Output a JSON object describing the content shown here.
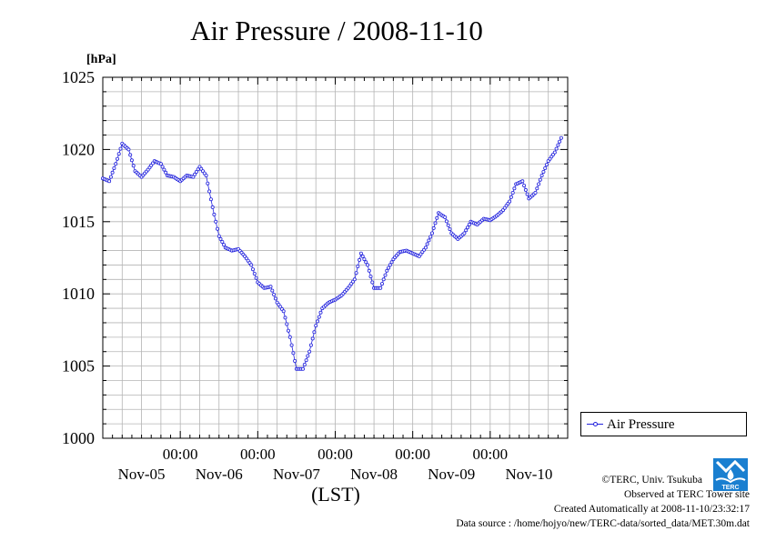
{
  "title": "Air Pressure / 2008-11-10",
  "colors": {
    "series": "#2222dd",
    "grid": "#b4b4b4",
    "logo": "#1a7fd0"
  },
  "chart_data": {
    "type": "line",
    "title": "Air Pressure / 2008-11-10",
    "ylabel": "[hPa]",
    "xlabel": "(LST)",
    "ylim": [
      1000,
      1025
    ],
    "y_ticks": [
      "1000",
      "1005",
      "1010",
      "1015",
      "1020",
      "1025"
    ],
    "x_range_hours": [
      0,
      144
    ],
    "x_tick_time_labels": [
      "00:00",
      "00:00",
      "00:00",
      "00:00",
      "00:00"
    ],
    "x_day_labels": [
      "Nov-05",
      "Nov-06",
      "Nov-07",
      "Nov-08",
      "Nov-09",
      "Nov-10"
    ],
    "grid": true,
    "legend_position": "right",
    "series": [
      {
        "name": "Air Pressure",
        "points": [
          [
            0,
            1018.0
          ],
          [
            2,
            1017.8
          ],
          [
            4,
            1019.0
          ],
          [
            6,
            1020.4
          ],
          [
            8,
            1020.0
          ],
          [
            10,
            1018.5
          ],
          [
            12,
            1018.1
          ],
          [
            14,
            1018.6
          ],
          [
            16,
            1019.2
          ],
          [
            18,
            1019.0
          ],
          [
            20,
            1018.2
          ],
          [
            22,
            1018.1
          ],
          [
            24,
            1017.8
          ],
          [
            26,
            1018.2
          ],
          [
            28,
            1018.1
          ],
          [
            30,
            1018.8
          ],
          [
            32,
            1018.2
          ],
          [
            34,
            1016.0
          ],
          [
            36,
            1014.0
          ],
          [
            38,
            1013.2
          ],
          [
            40,
            1013.0
          ],
          [
            42,
            1013.1
          ],
          [
            44,
            1012.6
          ],
          [
            46,
            1012.0
          ],
          [
            48,
            1010.8
          ],
          [
            50,
            1010.4
          ],
          [
            52,
            1010.5
          ],
          [
            54,
            1009.4
          ],
          [
            56,
            1008.8
          ],
          [
            58,
            1007.0
          ],
          [
            60,
            1004.8
          ],
          [
            62,
            1004.8
          ],
          [
            64,
            1006.0
          ],
          [
            66,
            1007.8
          ],
          [
            68,
            1009.0
          ],
          [
            70,
            1009.4
          ],
          [
            72,
            1009.6
          ],
          [
            74,
            1009.9
          ],
          [
            76,
            1010.4
          ],
          [
            78,
            1011.0
          ],
          [
            80,
            1012.8
          ],
          [
            82,
            1012.0
          ],
          [
            84,
            1010.4
          ],
          [
            86,
            1010.4
          ],
          [
            88,
            1011.6
          ],
          [
            90,
            1012.4
          ],
          [
            92,
            1012.9
          ],
          [
            94,
            1013.0
          ],
          [
            96,
            1012.8
          ],
          [
            98,
            1012.6
          ],
          [
            100,
            1013.2
          ],
          [
            102,
            1014.2
          ],
          [
            104,
            1015.6
          ],
          [
            106,
            1015.3
          ],
          [
            108,
            1014.2
          ],
          [
            110,
            1013.8
          ],
          [
            112,
            1014.2
          ],
          [
            114,
            1015.0
          ],
          [
            116,
            1014.8
          ],
          [
            118,
            1015.2
          ],
          [
            120,
            1015.1
          ],
          [
            122,
            1015.4
          ],
          [
            124,
            1015.8
          ],
          [
            126,
            1016.4
          ],
          [
            128,
            1017.6
          ],
          [
            130,
            1017.8
          ],
          [
            132,
            1016.6
          ],
          [
            134,
            1017.0
          ],
          [
            136,
            1018.2
          ],
          [
            138,
            1019.2
          ],
          [
            140,
            1019.8
          ],
          [
            142,
            1020.8
          ]
        ]
      }
    ]
  },
  "legend": {
    "label": "Air Pressure"
  },
  "credits": {
    "line1": "©TERC, Univ. Tsukuba",
    "line2": "Observed at TERC Tower site",
    "line3": "Created Automatically at 2008-11-10/23:32:17",
    "line4": "Data source : /home/hojyo/new/TERC-data/sorted_data/MET.30m.dat"
  },
  "logo_icon": "terc-logo-icon",
  "logo_text": "TERC"
}
